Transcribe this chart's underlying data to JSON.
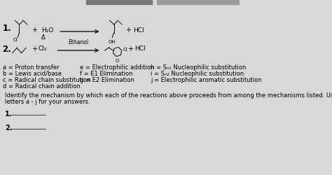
{
  "bg_color": "#d8d8d8",
  "top_banner_color": "#666666",
  "top_banner2_color": "#888888",
  "legend_col1": [
    "a = Proton transfer",
    "b = Lewis acid/base",
    "c = Radical chain substitution",
    "d = Radical chain addition"
  ],
  "legend_col2": [
    "e = Electrophilic addition",
    "f = E1 Elimination",
    "g = E2 Elimination"
  ],
  "legend_col3": [
    "h = Sₙ₁ Nucleophilic substitution",
    "i = Sₙ₂ Nucleophilic substitution",
    "j = Electrophilic aromatic substitution"
  ],
  "instruction_line1": "Identify the mechanism by which each of the reactions above proceeds from among the mechanisms listed. Use the",
  "instruction_line2": "letters a - j for your answers.",
  "answer_labels": [
    "1.",
    "2."
  ],
  "fs_legend": 6.0,
  "fs_instruction": 6.0,
  "fs_reaction_num": 8.5,
  "fs_reagent": 6.5,
  "fs_mol": 5.0
}
